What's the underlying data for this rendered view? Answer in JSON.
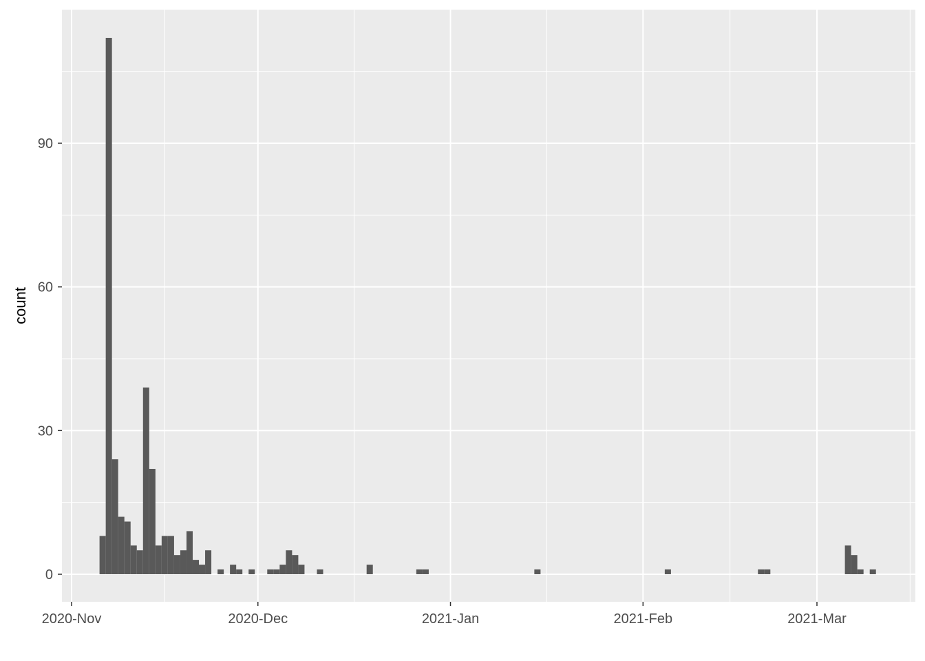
{
  "chart_data": {
    "type": "bar",
    "subtype": "histogram",
    "title": "",
    "xlabel": "",
    "ylabel": "count",
    "ylim": [
      0,
      116
    ],
    "xlim": [
      "2020-10-30",
      "2021-03-16"
    ],
    "grid": true,
    "bar_color": "#595959",
    "panel_color": "#ebebeb",
    "y_ticks": [
      0,
      30,
      60,
      90
    ],
    "x_ticks": [
      {
        "date": "2020-11-01",
        "label": "2020-Nov"
      },
      {
        "date": "2020-12-01",
        "label": "2020-Dec"
      },
      {
        "date": "2021-01-01",
        "label": "2021-Jan"
      },
      {
        "date": "2021-02-01",
        "label": "2021-Feb"
      },
      {
        "date": "2021-03-01",
        "label": "2021-Mar"
      }
    ],
    "bins": [
      {
        "x": "2020-11-06",
        "count": 8
      },
      {
        "x": "2020-11-07",
        "count": 112
      },
      {
        "x": "2020-11-08",
        "count": 24
      },
      {
        "x": "2020-11-09",
        "count": 12
      },
      {
        "x": "2020-11-10",
        "count": 11
      },
      {
        "x": "2020-11-11",
        "count": 6
      },
      {
        "x": "2020-11-12",
        "count": 5
      },
      {
        "x": "2020-11-13",
        "count": 39
      },
      {
        "x": "2020-11-14",
        "count": 22
      },
      {
        "x": "2020-11-15",
        "count": 6
      },
      {
        "x": "2020-11-16",
        "count": 8
      },
      {
        "x": "2020-11-17",
        "count": 8
      },
      {
        "x": "2020-11-18",
        "count": 4
      },
      {
        "x": "2020-11-19",
        "count": 5
      },
      {
        "x": "2020-11-20",
        "count": 9
      },
      {
        "x": "2020-11-21",
        "count": 3
      },
      {
        "x": "2020-11-22",
        "count": 2
      },
      {
        "x": "2020-11-23",
        "count": 5
      },
      {
        "x": "2020-11-25",
        "count": 1
      },
      {
        "x": "2020-11-27",
        "count": 2
      },
      {
        "x": "2020-11-28",
        "count": 1
      },
      {
        "x": "2020-11-30",
        "count": 1
      },
      {
        "x": "2020-12-03",
        "count": 1
      },
      {
        "x": "2020-12-04",
        "count": 1
      },
      {
        "x": "2020-12-05",
        "count": 2
      },
      {
        "x": "2020-12-06",
        "count": 5
      },
      {
        "x": "2020-12-07",
        "count": 4
      },
      {
        "x": "2020-12-08",
        "count": 2
      },
      {
        "x": "2020-12-11",
        "count": 1
      },
      {
        "x": "2020-12-19",
        "count": 2
      },
      {
        "x": "2020-12-27",
        "count": 1
      },
      {
        "x": "2020-12-28",
        "count": 1
      },
      {
        "x": "2021-01-15",
        "count": 1
      },
      {
        "x": "2021-02-05",
        "count": 1
      },
      {
        "x": "2021-02-20",
        "count": 1
      },
      {
        "x": "2021-02-21",
        "count": 1
      },
      {
        "x": "2021-03-06",
        "count": 6
      },
      {
        "x": "2021-03-07",
        "count": 4
      },
      {
        "x": "2021-03-08",
        "count": 1
      },
      {
        "x": "2021-03-10",
        "count": 1
      }
    ]
  }
}
